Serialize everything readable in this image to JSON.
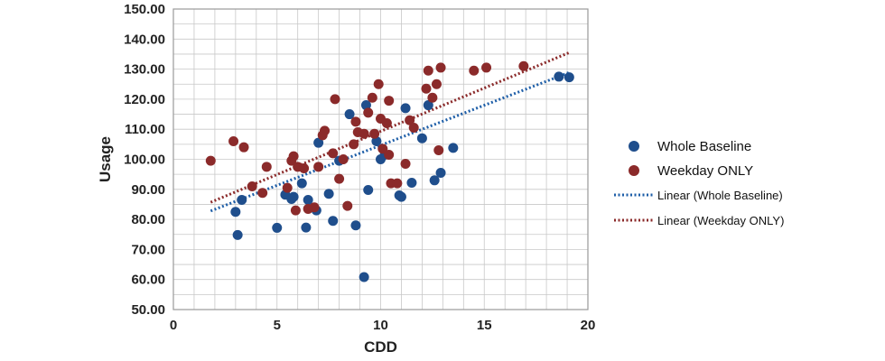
{
  "chart_data": {
    "type": "scatter",
    "title": "",
    "xlabel": "CDD",
    "ylabel": "Usage",
    "xlim": [
      0,
      20
    ],
    "ylim": [
      50,
      150
    ],
    "x_ticks": [
      "0",
      "5",
      "10",
      "15",
      "20"
    ],
    "y_ticks": [
      "50.00",
      "60.00",
      "70.00",
      "80.00",
      "90.00",
      "100.00",
      "110.00",
      "120.00",
      "130.00",
      "140.00",
      "150.00"
    ],
    "grid": true,
    "legend_position": "right",
    "series": [
      {
        "name": "Whole Baseline",
        "color": "#1f4e8c",
        "marker": "circle",
        "points": [
          [
            3.0,
            82.5
          ],
          [
            3.1,
            74.8
          ],
          [
            3.3,
            86.5
          ],
          [
            5.0,
            77.2
          ],
          [
            5.4,
            88.2
          ],
          [
            5.7,
            86.8
          ],
          [
            5.8,
            87.5
          ],
          [
            6.2,
            92.0
          ],
          [
            6.4,
            77.3
          ],
          [
            6.5,
            86.5
          ],
          [
            6.9,
            83.0
          ],
          [
            7.0,
            105.5
          ],
          [
            7.5,
            88.5
          ],
          [
            7.7,
            79.5
          ],
          [
            8.0,
            99.5
          ],
          [
            8.5,
            115.0
          ],
          [
            8.8,
            78.0
          ],
          [
            9.2,
            60.8
          ],
          [
            9.3,
            118.0
          ],
          [
            9.4,
            89.8
          ],
          [
            9.8,
            106.0
          ],
          [
            10.0,
            100.0
          ],
          [
            10.2,
            101.5
          ],
          [
            10.9,
            88.0
          ],
          [
            11.0,
            87.5
          ],
          [
            11.2,
            117.0
          ],
          [
            11.5,
            92.2
          ],
          [
            12.0,
            107.0
          ],
          [
            12.3,
            118.0
          ],
          [
            12.6,
            93.0
          ],
          [
            12.9,
            95.5
          ],
          [
            13.5,
            103.8
          ],
          [
            18.6,
            127.5
          ],
          [
            19.1,
            127.3
          ]
        ]
      },
      {
        "name": "Weekday ONLY",
        "color": "#8b2a2a",
        "marker": "circle",
        "points": [
          [
            1.8,
            99.5
          ],
          [
            2.9,
            106.0
          ],
          [
            3.4,
            104.0
          ],
          [
            3.8,
            91.0
          ],
          [
            4.3,
            88.8
          ],
          [
            4.5,
            97.5
          ],
          [
            5.5,
            90.5
          ],
          [
            5.7,
            99.5
          ],
          [
            5.8,
            101.0
          ],
          [
            5.9,
            83.0
          ],
          [
            6.0,
            97.5
          ],
          [
            6.3,
            97.0
          ],
          [
            6.5,
            83.5
          ],
          [
            6.8,
            84.0
          ],
          [
            7.0,
            97.5
          ],
          [
            7.2,
            108.0
          ],
          [
            7.3,
            109.5
          ],
          [
            7.7,
            102.0
          ],
          [
            7.8,
            120.0
          ],
          [
            8.0,
            93.5
          ],
          [
            8.2,
            100.0
          ],
          [
            8.4,
            84.5
          ],
          [
            8.7,
            105.0
          ],
          [
            8.8,
            112.5
          ],
          [
            8.9,
            109.0
          ],
          [
            9.2,
            108.5
          ],
          [
            9.4,
            115.5
          ],
          [
            9.6,
            120.5
          ],
          [
            9.7,
            108.5
          ],
          [
            9.9,
            125.0
          ],
          [
            10.1,
            103.5
          ],
          [
            10.0,
            113.5
          ],
          [
            10.3,
            112.0
          ],
          [
            10.4,
            119.5
          ],
          [
            10.4,
            101.5
          ],
          [
            10.5,
            92.0
          ],
          [
            10.8,
            92.0
          ],
          [
            11.2,
            98.5
          ],
          [
            11.4,
            113.0
          ],
          [
            11.6,
            110.5
          ],
          [
            12.2,
            123.5
          ],
          [
            12.3,
            129.5
          ],
          [
            12.5,
            120.5
          ],
          [
            12.7,
            125.0
          ],
          [
            12.8,
            103.0
          ],
          [
            12.9,
            130.5
          ],
          [
            14.5,
            129.5
          ],
          [
            15.1,
            130.5
          ],
          [
            16.9,
            131.0
          ]
        ]
      }
    ],
    "trendlines": [
      {
        "name": "Linear (Whole Baseline)",
        "color": "#1f5fa8",
        "style": "dotted",
        "x": [
          1.8,
          19.1
        ],
        "y": [
          82.8,
          128.9
        ]
      },
      {
        "name": "Linear (Weekday ONLY)",
        "color": "#8b2a2a",
        "style": "dotted",
        "x": [
          1.8,
          19.1
        ],
        "y": [
          85.7,
          135.5
        ]
      }
    ]
  }
}
